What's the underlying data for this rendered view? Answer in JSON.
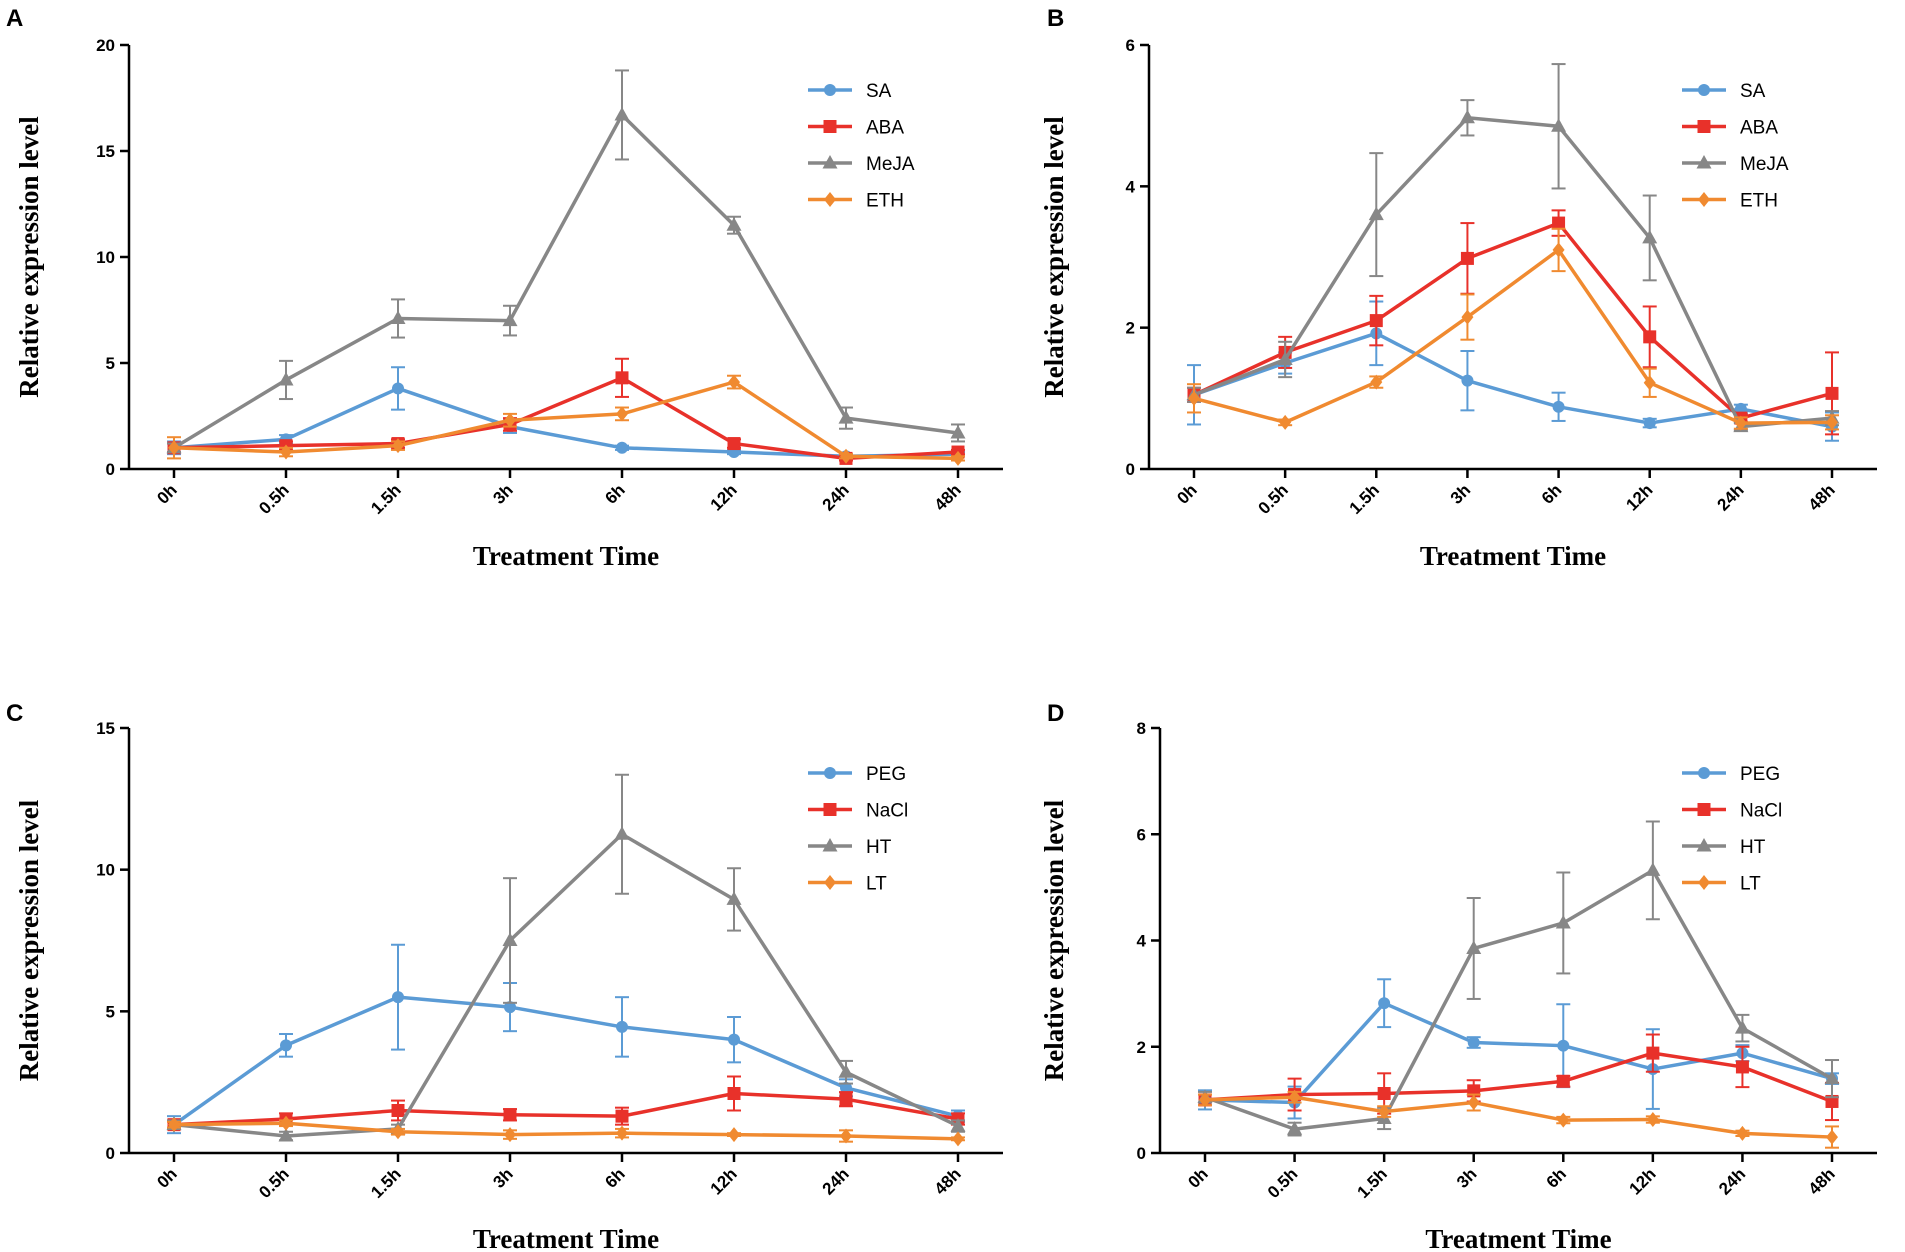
{
  "chart_data": [
    {
      "panel": "A",
      "type": "line",
      "xlabel": "Treatment Time",
      "ylabel": "Relative expression level",
      "categories": [
        "0h",
        "0.5h",
        "1.5h",
        "3h",
        "6h",
        "12h",
        "24h",
        "48h"
      ],
      "ylim": [
        0,
        20
      ],
      "yticks": [
        0,
        5,
        10,
        15,
        20
      ],
      "legend_position": "top-right",
      "series": [
        {
          "name": "SA",
          "color": "#5b9bd5",
          "marker": "circle",
          "values": [
            1.0,
            1.4,
            3.8,
            2.0,
            1.0,
            0.8,
            0.6,
            0.7
          ],
          "errors": [
            0.3,
            0.2,
            1.0,
            0.3,
            0.1,
            0.1,
            0.1,
            0.1
          ]
        },
        {
          "name": "ABA",
          "color": "#e8312a",
          "marker": "square",
          "values": [
            1.0,
            1.1,
            1.2,
            2.1,
            4.3,
            1.2,
            0.5,
            0.8
          ],
          "errors": [
            0.2,
            0.2,
            0.2,
            0.3,
            0.9,
            0.2,
            0.1,
            0.1
          ]
        },
        {
          "name": "MeJA",
          "color": "#878787",
          "marker": "triangle",
          "values": [
            1.0,
            4.2,
            7.1,
            7.0,
            16.7,
            11.5,
            2.4,
            1.7
          ],
          "errors": [
            0.2,
            0.9,
            0.9,
            0.7,
            2.1,
            0.4,
            0.5,
            0.4
          ]
        },
        {
          "name": "ETH",
          "color": "#f08a30",
          "marker": "diamond",
          "values": [
            1.0,
            0.8,
            1.1,
            2.3,
            2.6,
            4.1,
            0.6,
            0.5
          ],
          "errors": [
            0.5,
            0.2,
            0.2,
            0.3,
            0.3,
            0.3,
            0.1,
            0.1
          ]
        }
      ]
    },
    {
      "panel": "B",
      "type": "line",
      "xlabel": "Treatment Time",
      "ylabel": "Relative expression level",
      "categories": [
        "0h",
        "0.5h",
        "1.5h",
        "3h",
        "6h",
        "12h",
        "24h",
        "48h"
      ],
      "ylim": [
        0,
        6
      ],
      "yticks": [
        0,
        2,
        4,
        6
      ],
      "legend_position": "top-right",
      "series": [
        {
          "name": "SA",
          "color": "#5b9bd5",
          "marker": "circle",
          "values": [
            1.05,
            1.5,
            1.92,
            1.25,
            0.88,
            0.65,
            0.85,
            0.6
          ],
          "errors": [
            0.42,
            0.15,
            0.45,
            0.42,
            0.2,
            0.06,
            0.06,
            0.2
          ]
        },
        {
          "name": "ABA",
          "color": "#e8312a",
          "marker": "square",
          "values": [
            1.05,
            1.65,
            2.1,
            2.98,
            3.48,
            1.87,
            0.72,
            1.07
          ],
          "errors": [
            0.1,
            0.22,
            0.35,
            0.5,
            0.18,
            0.43,
            0.05,
            0.58
          ]
        },
        {
          "name": "MeJA",
          "color": "#878787",
          "marker": "triangle",
          "values": [
            1.05,
            1.55,
            3.6,
            4.97,
            4.85,
            3.27,
            0.6,
            0.72
          ],
          "errors": [
            0.1,
            0.25,
            0.87,
            0.25,
            0.88,
            0.6,
            0.05,
            0.1
          ]
        },
        {
          "name": "ETH",
          "color": "#f08a30",
          "marker": "diamond",
          "values": [
            1.0,
            0.66,
            1.23,
            2.15,
            3.1,
            1.22,
            0.65,
            0.66
          ],
          "errors": [
            0.2,
            0.04,
            0.08,
            0.32,
            0.3,
            0.2,
            0.08,
            0.1
          ]
        }
      ]
    },
    {
      "panel": "C",
      "type": "line",
      "xlabel": "Treatment Time",
      "ylabel": "Relative expression level",
      "categories": [
        "0h",
        "0.5h",
        "1.5h",
        "3h",
        "6h",
        "12h",
        "24h",
        "48h"
      ],
      "ylim": [
        0,
        15
      ],
      "yticks": [
        0,
        5,
        10,
        15
      ],
      "legend_position": "top-right",
      "series": [
        {
          "name": "PEG",
          "color": "#5b9bd5",
          "marker": "circle",
          "values": [
            1.0,
            3.8,
            5.5,
            5.15,
            4.45,
            4.0,
            2.3,
            1.3
          ],
          "errors": [
            0.3,
            0.4,
            1.85,
            0.85,
            1.05,
            0.8,
            0.3,
            0.2
          ]
        },
        {
          "name": "NaCl",
          "color": "#e8312a",
          "marker": "square",
          "values": [
            1.0,
            1.2,
            1.5,
            1.35,
            1.3,
            2.1,
            1.9,
            1.2
          ],
          "errors": [
            0.15,
            0.2,
            0.35,
            0.2,
            0.3,
            0.6,
            0.25,
            0.2
          ]
        },
        {
          "name": "HT",
          "color": "#878787",
          "marker": "triangle",
          "values": [
            1.0,
            0.6,
            0.85,
            7.5,
            11.25,
            8.95,
            2.85,
            0.95
          ],
          "errors": [
            0.15,
            0.15,
            0.15,
            2.2,
            2.1,
            1.1,
            0.4,
            0.2
          ]
        },
        {
          "name": "LT",
          "color": "#f08a30",
          "marker": "diamond",
          "values": [
            1.0,
            1.05,
            0.75,
            0.65,
            0.7,
            0.65,
            0.6,
            0.5
          ],
          "errors": [
            0.1,
            0.1,
            0.1,
            0.15,
            0.15,
            0.05,
            0.2,
            0.05
          ]
        }
      ]
    },
    {
      "panel": "D",
      "type": "line",
      "xlabel": "Treatment Time",
      "ylabel": "Relative expression level",
      "categories": [
        "0h",
        "0.5h",
        "1.5h",
        "3h",
        "6h",
        "12h",
        "24h",
        "48h"
      ],
      "ylim": [
        0,
        8
      ],
      "yticks": [
        0,
        2,
        4,
        6,
        8
      ],
      "legend_position": "top-right",
      "series": [
        {
          "name": "PEG",
          "color": "#5b9bd5",
          "marker": "circle",
          "values": [
            1.0,
            0.95,
            2.82,
            2.08,
            2.02,
            1.58,
            1.88,
            1.4
          ],
          "errors": [
            0.18,
            0.3,
            0.45,
            0.1,
            0.78,
            0.75,
            0.15,
            0.1
          ]
        },
        {
          "name": "NaCl",
          "color": "#e8312a",
          "marker": "square",
          "values": [
            1.0,
            1.1,
            1.12,
            1.17,
            1.35,
            1.88,
            1.62,
            0.97
          ],
          "errors": [
            0.1,
            0.3,
            0.38,
            0.2,
            0.1,
            0.35,
            0.38,
            0.35
          ]
        },
        {
          "name": "HT",
          "color": "#878787",
          "marker": "triangle",
          "values": [
            1.05,
            0.45,
            0.65,
            3.85,
            4.33,
            5.32,
            2.35,
            1.4
          ],
          "errors": [
            0.1,
            0.12,
            0.2,
            0.95,
            0.95,
            0.92,
            0.25,
            0.35
          ]
        },
        {
          "name": "LT",
          "color": "#f08a30",
          "marker": "diamond",
          "values": [
            1.0,
            1.05,
            0.78,
            0.95,
            0.62,
            0.63,
            0.37,
            0.3
          ],
          "errors": [
            0.1,
            0.1,
            0.1,
            0.15,
            0.06,
            0.06,
            0.05,
            0.2
          ]
        }
      ]
    }
  ]
}
